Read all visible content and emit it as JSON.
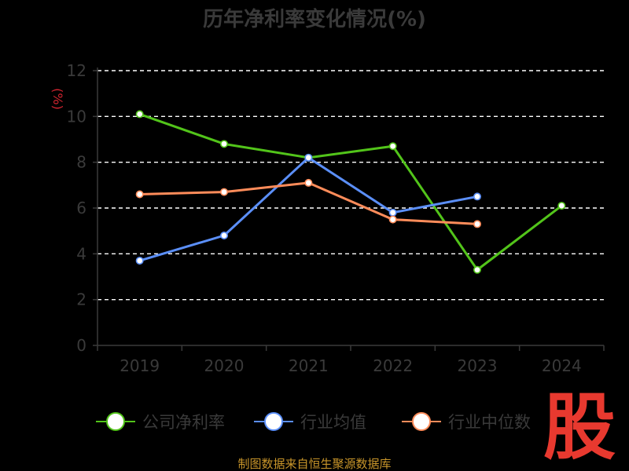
{
  "chart_data": {
    "type": "line",
    "title": "历年净利率变化情况(%)",
    "ylabel": "(%)",
    "xlabel": "",
    "categories": [
      "2019",
      "2020",
      "2021",
      "2022",
      "2023",
      "2024"
    ],
    "ylim": [
      0,
      12
    ],
    "yticks": [
      0,
      2,
      4,
      6,
      8,
      10,
      12
    ],
    "grid": true,
    "legend_position": "bottom",
    "series": [
      {
        "name": "公司净利率",
        "color": "#52c41a",
        "values": [
          10.1,
          8.8,
          8.2,
          8.7,
          3.3,
          6.1
        ]
      },
      {
        "name": "行业均值",
        "color": "#5b8ff9",
        "values": [
          3.7,
          4.8,
          8.2,
          5.8,
          6.5,
          null
        ]
      },
      {
        "name": "行业中位数",
        "color": "#ff8c5a",
        "values": [
          6.6,
          6.7,
          7.1,
          5.5,
          5.3,
          null
        ]
      }
    ]
  },
  "logo_text": "股",
  "source_text": "制图数据来自恒生聚源数据库"
}
